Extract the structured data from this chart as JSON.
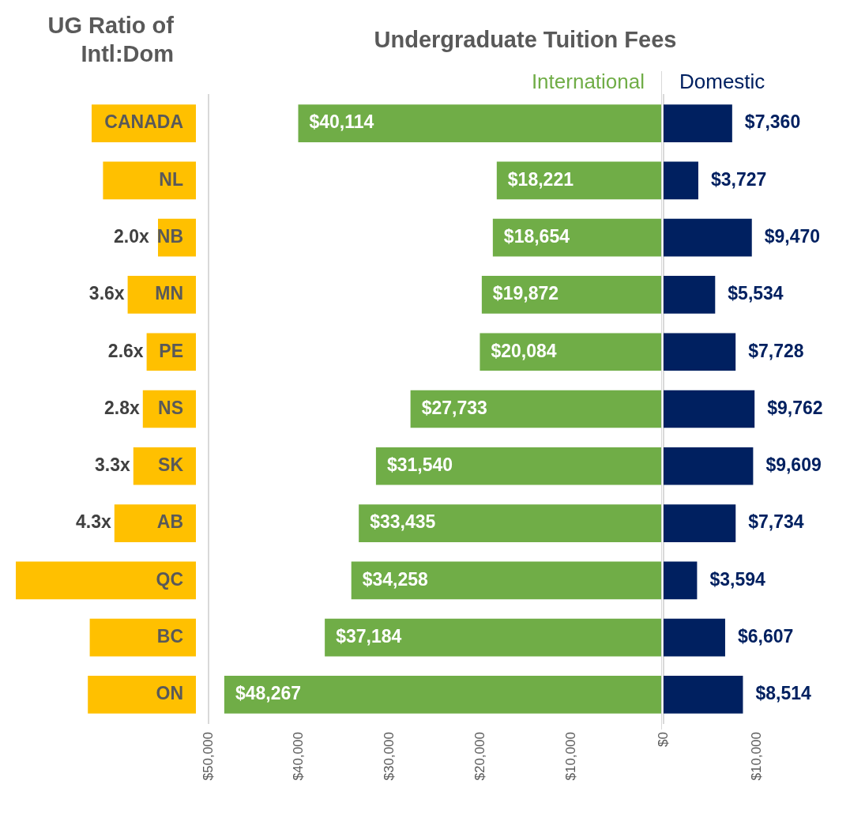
{
  "chart_data": [
    {
      "type": "bar",
      "orientation": "horizontal",
      "title": "UG Ratio of Intl:Dom",
      "categories": [
        "CANADA",
        "NL",
        "NB",
        "MN",
        "PE",
        "NS",
        "SK",
        "AB",
        "QC",
        "BC",
        "ON"
      ],
      "series": [
        {
          "color": "#ffc000",
          "values": [
            5.5,
            4.9,
            2.0,
            3.6,
            2.6,
            2.8,
            3.3,
            4.3,
            9.5,
            5.6,
            5.7
          ],
          "value_labels": [
            null,
            null,
            "2.0x",
            "3.6x",
            "2.6x",
            "2.8x",
            "3.3x",
            "4.3x",
            null,
            null,
            null
          ]
        }
      ]
    },
    {
      "type": "bar",
      "orientation": "horizontal",
      "title": "Undergraduate Tuition Fees",
      "legend": "top",
      "categories": [
        null,
        null,
        null,
        null,
        null,
        null,
        null,
        null,
        null,
        null,
        null
      ],
      "xlim": [
        50000,
        0
      ],
      "xticks": [
        {
          "value": 50000,
          "label": "$50,000"
        },
        {
          "value": 40000,
          "label": "$40,000"
        },
        {
          "value": 30000,
          "label": "$30,000"
        },
        {
          "value": 20000,
          "label": "$20,000"
        },
        {
          "value": 10000,
          "label": "$10,000"
        }
      ],
      "series": [
        {
          "name": "International",
          "color": "#70ad47",
          "values": [
            40114,
            18221,
            18654,
            19872,
            20084,
            27733,
            31540,
            33435,
            34258,
            37184,
            48267
          ],
          "value_labels": [
            "$40,114",
            "$18,221",
            "$18,654",
            "$19,872",
            "$20,084",
            "$27,733",
            "$31,540",
            "$33,435",
            "$34,258",
            "$37,184",
            "$48,267"
          ]
        }
      ]
    },
    {
      "type": "bar",
      "orientation": "horizontal",
      "legend": "top",
      "categories": [
        null,
        null,
        null,
        null,
        null,
        null,
        null,
        null,
        null,
        null,
        null
      ],
      "xlim": [
        0,
        10000
      ],
      "xticks": [
        {
          "value": 0,
          "label": "$0"
        },
        {
          "value": 10000,
          "label": "$10,000"
        }
      ],
      "series": [
        {
          "name": "Domestic",
          "color": "#002060",
          "values": [
            7360,
            3727,
            9470,
            5534,
            7728,
            9762,
            9609,
            7734,
            3594,
            6607,
            8514
          ],
          "value_labels": [
            "$7,360",
            "$3,727",
            "$9,470",
            "$5,534",
            "$7,728",
            "$9,762",
            "$9,609",
            "$7,734",
            "$3,594",
            "$6,607",
            "$8,514"
          ]
        }
      ]
    }
  ]
}
